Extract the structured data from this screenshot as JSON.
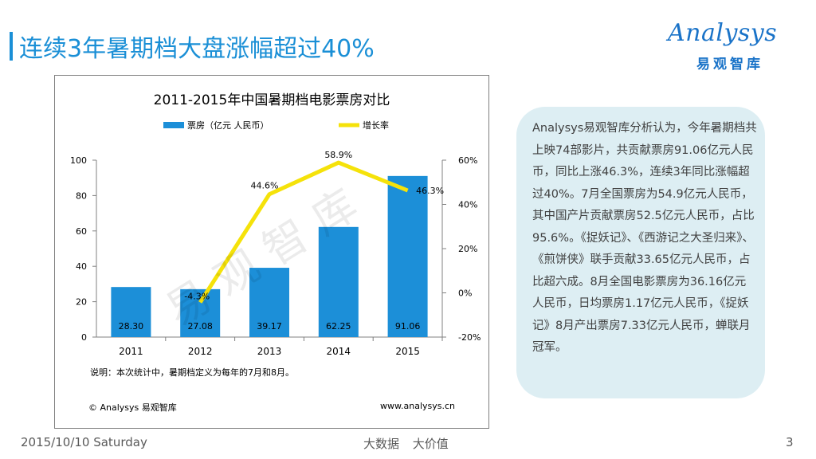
{
  "slide": {
    "title": "连续3年暑期档大盘涨幅超过40%",
    "logo_en": "Analysys",
    "logo_cn": "易观智库",
    "date": "2015/10/10 Saturday",
    "slogan": "大数据  大价值",
    "page": "3"
  },
  "chart_frame": {
    "note": "说明：本次统计中，暑期档定义为每年的7月和8月。",
    "source": "© Analysys 易观智库",
    "url": "www.analysys.cn",
    "watermark": "易观智库"
  },
  "chart_data": {
    "type": "bar",
    "title": "2011-2015年中国暑期档电影票房对比",
    "categories": [
      "2011",
      "2012",
      "2013",
      "2014",
      "2015"
    ],
    "series": [
      {
        "name": "票房（亿元 人民币）",
        "type": "bar",
        "axis": "left",
        "values": [
          28.3,
          27.08,
          39.17,
          62.25,
          91.06
        ],
        "labels": [
          "28.30",
          "27.08",
          "39.17",
          "62.25",
          "91.06"
        ]
      },
      {
        "name": "增长率",
        "type": "line",
        "axis": "right",
        "values": [
          -4.3,
          44.6,
          58.9,
          46.3
        ],
        "x": [
          "2012",
          "2013",
          "2014",
          "2015"
        ],
        "labels": [
          "-4.3%",
          "44.6%",
          "58.9%",
          "46.3%"
        ]
      }
    ],
    "y_left": {
      "min": 0,
      "max": 100,
      "ticks": [
        0,
        20,
        40,
        60,
        80,
        100
      ],
      "tick_labels": [
        "0",
        "20",
        "40",
        "60",
        "80",
        "100"
      ]
    },
    "y_right": {
      "min": -20,
      "max": 60,
      "ticks": [
        -20,
        0,
        20,
        40,
        60
      ],
      "tick_labels": [
        "-20%",
        "0%",
        "20%",
        "40%",
        "60%"
      ]
    },
    "colors": {
      "bar": "#1c8fd8",
      "line": "#f5e20a"
    },
    "legend_position": "top"
  },
  "analysis": {
    "text": "Analysys易观智库分析认为，今年暑期档共上映74部影片，共贡献票房91.06亿元人民币，同比上涨46.3%，连续3年同比涨幅超过40%。7月全国票房为54.9亿元人民币，其中国产片贡献票房52.5亿元人民币，占比95.6%。《捉妖记》、《西游记之大圣归来》、《煎饼侠》联手贡献33.65亿元人民币，占比超六成。8月全国电影票房为36.16亿元人民币，日均票房1.17亿元人民币，《捉妖记》8月产出票房7.33亿元人民币，蝉联月冠军。"
  }
}
